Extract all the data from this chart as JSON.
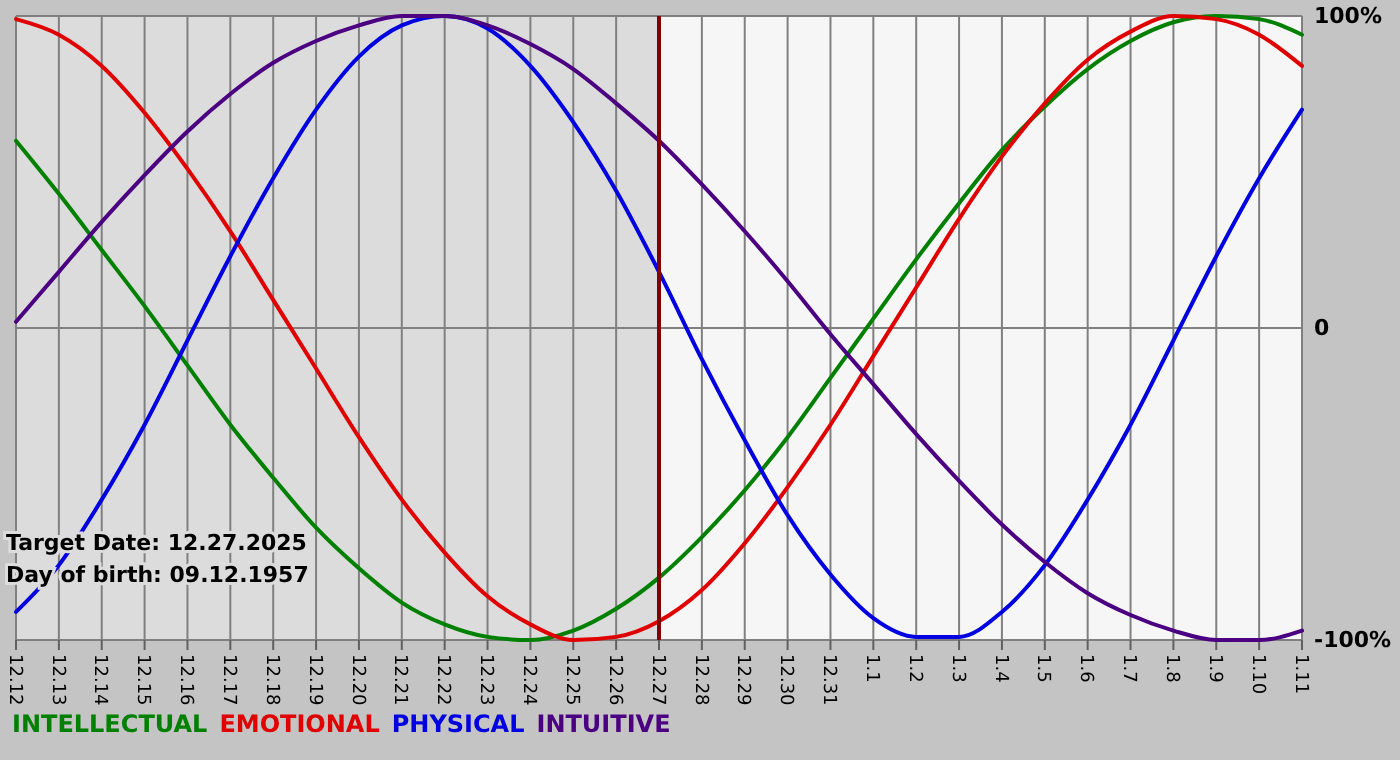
{
  "chart_data": {
    "type": "line",
    "categories": [
      "12.12",
      "12.13",
      "12.14",
      "12.15",
      "12.16",
      "12.17",
      "12.18",
      "12.19",
      "12.20",
      "12.21",
      "12.22",
      "12.23",
      "12.24",
      "12.25",
      "12.26",
      "12.27",
      "12.28",
      "12.29",
      "12.30",
      "12.31",
      "1.1",
      "1.2",
      "1.3",
      "1.4",
      "1.5",
      "1.6",
      "1.7",
      "1.8",
      "1.9",
      "1.10",
      "1.11"
    ],
    "series": [
      {
        "name": "INTELLECTUAL",
        "color": "#008000",
        "values": [
          60,
          43,
          25,
          7,
          -12,
          -31,
          -48,
          -64,
          -77,
          -88,
          -95,
          -99,
          -100,
          -97,
          -90,
          -80,
          -67,
          -52,
          -35,
          -16,
          3,
          22,
          40,
          57,
          71,
          83,
          92,
          98,
          100,
          99,
          94
        ]
      },
      {
        "name": "EMOTIONAL",
        "color": "#e00000",
        "values": [
          99,
          94,
          84,
          69,
          51,
          31,
          9,
          -13,
          -35,
          -55,
          -72,
          -86,
          -95,
          -100,
          -99,
          -94,
          -84,
          -69,
          -51,
          -31,
          -9,
          13,
          35,
          55,
          72,
          86,
          95,
          100,
          99,
          94,
          84
        ]
      },
      {
        "name": "PHYSICAL",
        "color": "#0000e0",
        "values": [
          -91,
          -76,
          -55,
          -31,
          -4,
          23,
          48,
          70,
          87,
          97,
          100,
          96,
          84,
          66,
          44,
          18,
          -10,
          -36,
          -60,
          -79,
          -93,
          -99,
          -99,
          -91,
          -76,
          -55,
          -31,
          -4,
          23,
          48,
          70
        ]
      },
      {
        "name": "INTUITIVE",
        "color": "#4b0082",
        "values": [
          2,
          18,
          34,
          49,
          63,
          75,
          85,
          92,
          97,
          100,
          100,
          97,
          91,
          83,
          72,
          60,
          46,
          31,
          15,
          -2,
          -18,
          -34,
          -49,
          -63,
          -75,
          -85,
          -92,
          -97,
          -100,
          -100,
          -97
        ]
      }
    ],
    "ylim": [
      -100,
      100
    ],
    "yticks": [
      {
        "value": -100,
        "label": "-100%"
      },
      0,
      {
        "value": 100,
        "label": "100%"
      }
    ],
    "grid": true,
    "legend": "bottom",
    "ref_lines": [
      {
        "axis": "x",
        "value": "12.27",
        "color": "#800000"
      }
    ],
    "bands": [
      {
        "axis": "x",
        "from": "12.12",
        "to": "12.27",
        "color": "#dcdcdc"
      }
    ],
    "annotations": [
      "Target Date: 12.27.2025",
      "Day of birth: 09.12.1957"
    ]
  }
}
